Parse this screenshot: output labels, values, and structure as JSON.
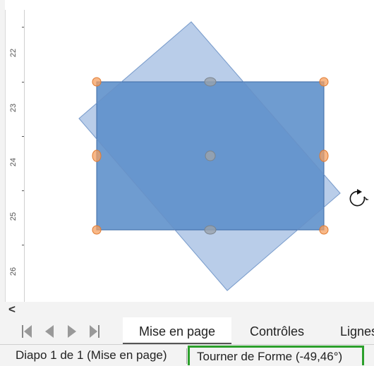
{
  "ruler": {
    "labels": [
      "22",
      "23",
      "24",
      "25",
      "26"
    ]
  },
  "canvas": {
    "colors": {
      "rect_fill": "#5b8ec9",
      "rect_border": "#3d6aa5",
      "ghost_fill": "#a7c1e4",
      "handle_orange": "#f5a060",
      "handle_grey": "#9aa3ad"
    },
    "rotation_angle": -49.46,
    "rotate_cursor_icon": "rotate-cursor-icon"
  },
  "scroll": {
    "left_arrow": "<"
  },
  "tabbar": {
    "nav_icons": [
      "first-slide-icon",
      "previous-slide-icon",
      "next-slide-icon",
      "last-slide-icon"
    ],
    "tabs": [
      {
        "label": "Mise en page",
        "active": true
      },
      {
        "label": "Contrôles",
        "active": false
      },
      {
        "label": "Lignes",
        "active": false
      }
    ]
  },
  "statusbar": {
    "slide_info": "Diapo 1 de 1 (Mise en page)",
    "action_text": "Tourner de Forme (-49,46°)",
    "highlight_color": "#2ca02c"
  }
}
